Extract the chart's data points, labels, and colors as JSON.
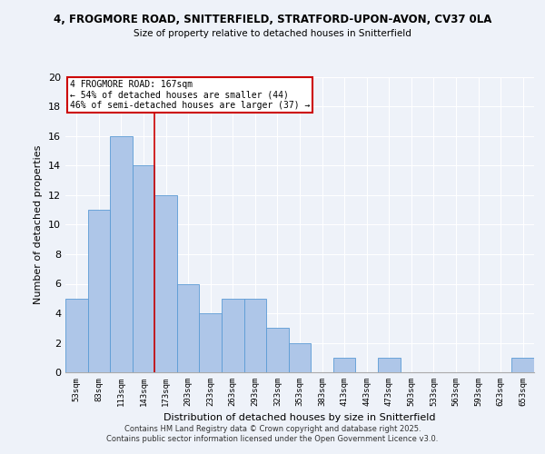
{
  "title1": "4, FROGMORE ROAD, SNITTERFIELD, STRATFORD-UPON-AVON, CV37 0LA",
  "title2": "Size of property relative to detached houses in Snitterfield",
  "xlabel": "Distribution of detached houses by size in Snitterfield",
  "ylabel": "Number of detached properties",
  "categories": [
    "53sqm",
    "83sqm",
    "113sqm",
    "143sqm",
    "173sqm",
    "203sqm",
    "233sqm",
    "263sqm",
    "293sqm",
    "323sqm",
    "353sqm",
    "383sqm",
    "413sqm",
    "443sqm",
    "473sqm",
    "503sqm",
    "533sqm",
    "563sqm",
    "593sqm",
    "623sqm",
    "653sqm"
  ],
  "values": [
    5,
    11,
    16,
    14,
    12,
    6,
    4,
    5,
    5,
    3,
    2,
    0,
    1,
    0,
    1,
    0,
    0,
    0,
    0,
    0,
    1
  ],
  "bar_color": "#aec6e8",
  "bar_edge_color": "#5b9bd5",
  "ylim": [
    0,
    20
  ],
  "yticks": [
    0,
    2,
    4,
    6,
    8,
    10,
    12,
    14,
    16,
    18,
    20
  ],
  "property_label": "4 FROGMORE ROAD: 167sqm",
  "annotation_line1": "← 54% of detached houses are smaller (44)",
  "annotation_line2": "46% of semi-detached houses are larger (37) →",
  "vline_x": 3.5,
  "annotation_box_color": "#ffffff",
  "annotation_box_edge_color": "#cc0000",
  "vline_color": "#cc0000",
  "background_color": "#eef2f9",
  "grid_color": "#ffffff",
  "footer1": "Contains HM Land Registry data © Crown copyright and database right 2025.",
  "footer2": "Contains public sector information licensed under the Open Government Licence v3.0."
}
